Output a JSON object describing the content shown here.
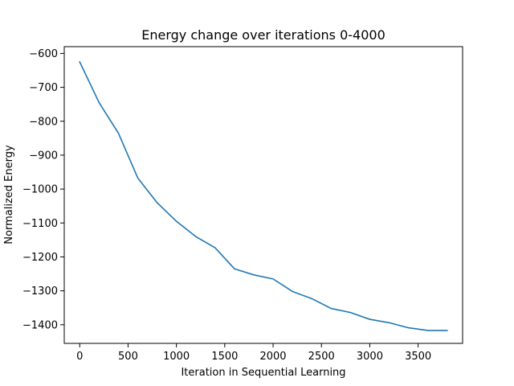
{
  "chart_data": {
    "type": "line",
    "title": "Energy change over iterations 0-4000",
    "xlabel": "Iteration in Sequential Learning",
    "ylabel": "Normalized Energy",
    "xlim": [
      -160,
      3960
    ],
    "ylim": [
      -1455,
      -580
    ],
    "xticks": [
      0,
      500,
      1000,
      1500,
      2000,
      2500,
      3000,
      3500
    ],
    "yticks": [
      -600,
      -700,
      -800,
      -900,
      -1000,
      -1100,
      -1200,
      -1300,
      -1400
    ],
    "grid": false,
    "series": [
      {
        "color": "#1f77b4",
        "x": [
          0,
          200,
          400,
          600,
          800,
          1000,
          1200,
          1400,
          1600,
          1800,
          2000,
          2200,
          2400,
          2600,
          2800,
          3000,
          3200,
          3400,
          3600,
          3800
        ],
        "y": [
          -625,
          -745,
          -835,
          -967,
          -1040,
          -1095,
          -1140,
          -1173,
          -1235,
          -1253,
          -1265,
          -1302,
          -1323,
          -1352,
          -1364,
          -1384,
          -1394,
          -1409,
          -1417,
          -1417
        ]
      }
    ]
  }
}
